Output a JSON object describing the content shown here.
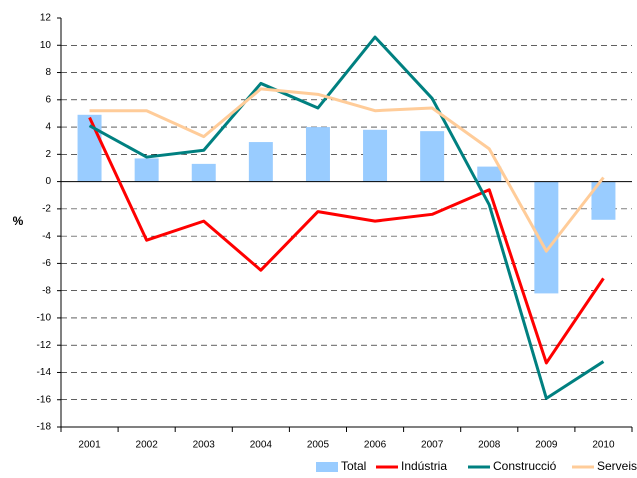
{
  "chart_data": {
    "type": "bar-line",
    "y_label": "%",
    "categories": [
      "2001",
      "2002",
      "2003",
      "2004",
      "2005",
      "2006",
      "2007",
      "2008",
      "2009",
      "2010"
    ],
    "series": [
      {
        "name": "Total",
        "type": "bar",
        "color": "#99ccff",
        "values": [
          4.9,
          1.7,
          1.3,
          2.9,
          4.0,
          3.8,
          3.7,
          1.1,
          -8.2,
          -2.8
        ]
      },
      {
        "name": "Indústria",
        "type": "line",
        "color": "#ff0000",
        "values": [
          4.7,
          -4.3,
          -2.9,
          -6.5,
          -2.2,
          -2.9,
          -2.4,
          -0.6,
          -13.3,
          -7.1
        ]
      },
      {
        "name": "Construcció",
        "type": "line",
        "color": "#008080",
        "values": [
          4.1,
          1.8,
          2.3,
          7.2,
          5.4,
          10.6,
          6.1,
          -1.7,
          -15.9,
          -13.2
        ]
      },
      {
        "name": "Serveis",
        "type": "line",
        "color": "#ffcc99",
        "values": [
          5.2,
          5.2,
          3.3,
          6.8,
          6.4,
          5.2,
          5.4,
          2.4,
          -5.1,
          0.3
        ]
      }
    ],
    "ylim": [
      -18,
      12
    ],
    "yticks": [
      -18,
      -16,
      -14,
      -12,
      -10,
      -8,
      -6,
      -4,
      -2,
      0,
      2,
      4,
      6,
      8,
      10,
      12
    ],
    "grid": true
  }
}
